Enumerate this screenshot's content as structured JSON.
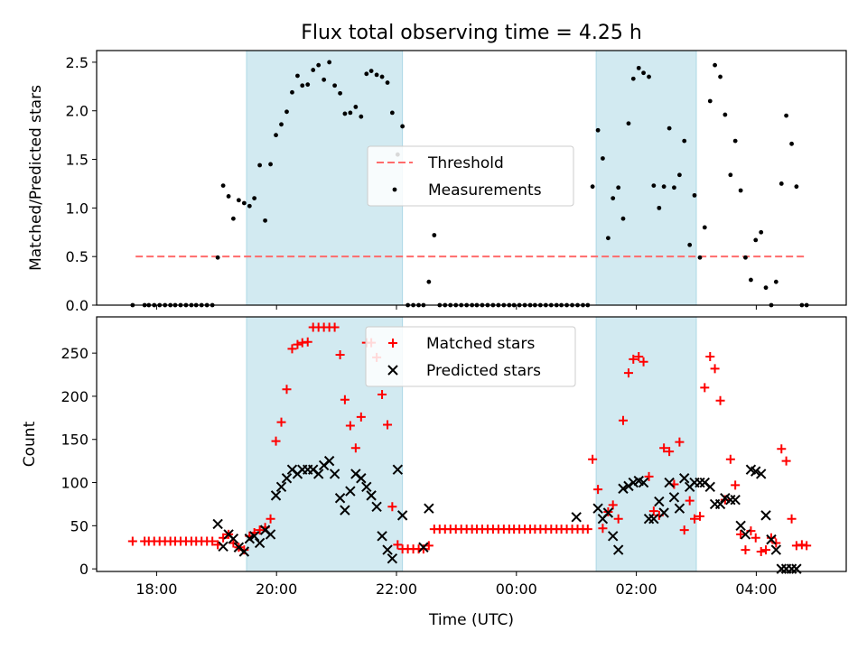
{
  "figure": {
    "title": "Flux total observing time = 4.25 h",
    "xlabel": "Time (UTC)"
  },
  "chart_data": [
    {
      "type": "scatter",
      "title": "Flux total observing time = 4.25 h",
      "ylabel": "Matched/Predicted stars",
      "xlabel": "",
      "x_unit": "hours relative to 00:00 UTC",
      "xlim": [
        -7.0,
        5.5
      ],
      "ylim": [
        0.0,
        2.62
      ],
      "yticks": [
        0.0,
        0.5,
        1.0,
        1.5,
        2.0,
        2.5
      ],
      "xtick_labels": [
        "18:00",
        "20:00",
        "22:00",
        "00:00",
        "02:00",
        "04:00"
      ],
      "xtick_values": [
        -6,
        -4,
        -2,
        0,
        2,
        4
      ],
      "shaded_intervals": [
        [
          -4.5,
          -1.9
        ],
        [
          1.33,
          3.0
        ]
      ],
      "shade_color": "#add8e6",
      "legend_location": "center",
      "series": [
        {
          "name": "Threshold",
          "style": "dashed-line",
          "color": "#ff6b6b",
          "x": [
            -6.35,
            4.85
          ],
          "y": [
            0.5,
            0.5
          ]
        },
        {
          "name": "Measurements",
          "style": "dot",
          "color": "#000000",
          "x": [
            -6.4,
            -6.2,
            -6.13,
            -6.04,
            -5.95,
            -5.86,
            -5.77,
            -5.69,
            -5.6,
            -5.51,
            -5.42,
            -5.34,
            -5.25,
            -5.16,
            -5.07,
            -4.98,
            -4.89,
            -4.8,
            -4.72,
            -4.63,
            -4.54,
            -4.45,
            -4.37,
            -4.28,
            -4.19,
            -4.1,
            -4.01,
            -3.92,
            -3.83,
            -3.74,
            -3.65,
            -3.57,
            -3.48,
            -3.39,
            -3.3,
            -3.21,
            -3.12,
            -3.03,
            -2.94,
            -2.86,
            -2.77,
            -2.68,
            -2.59,
            -2.5,
            -2.42,
            -2.33,
            -2.24,
            -2.15,
            -2.07,
            -1.98,
            -1.9,
            -1.81,
            -1.72,
            -1.63,
            -1.55,
            -1.46,
            -1.37,
            -1.28,
            -1.19,
            -1.1,
            -1.01,
            -0.92,
            -0.83,
            -0.74,
            -0.66,
            -0.57,
            -0.48,
            -0.39,
            -0.3,
            -0.21,
            -0.12,
            -0.04,
            0.05,
            0.14,
            0.23,
            0.31,
            0.4,
            0.49,
            0.58,
            0.67,
            0.75,
            0.84,
            0.93,
            1.02,
            1.11,
            1.19,
            1.27,
            1.36,
            1.44,
            1.53,
            1.61,
            1.7,
            1.78,
            1.87,
            1.95,
            2.04,
            2.12,
            2.21,
            2.29,
            2.38,
            2.46,
            2.55,
            2.63,
            2.72,
            2.8,
            2.89,
            2.97,
            3.06,
            3.14,
            3.23,
            3.31,
            3.4,
            3.48,
            3.57,
            3.65,
            3.74,
            3.82,
            3.91,
            3.99,
            4.08,
            4.16,
            4.25,
            4.33,
            4.42,
            4.5,
            4.59,
            4.67,
            4.76,
            4.84
          ],
          "y": [
            0.0,
            0.0,
            0.0,
            0.0,
            0.0,
            0.0,
            0.0,
            0.0,
            0.0,
            0.0,
            0.0,
            0.0,
            0.0,
            0.0,
            0.0,
            0.49,
            1.23,
            1.12,
            0.89,
            1.08,
            1.05,
            1.02,
            1.1,
            1.44,
            0.87,
            1.45,
            1.75,
            1.86,
            1.99,
            2.19,
            2.36,
            2.26,
            2.27,
            2.42,
            2.47,
            2.32,
            2.5,
            2.26,
            2.18,
            1.97,
            1.98,
            2.04,
            1.94,
            2.38,
            2.41,
            2.37,
            2.35,
            2.29,
            1.98,
            1.55,
            1.84,
            0.0,
            0.0,
            0.0,
            0.0,
            0.24,
            0.72,
            0.0,
            0.0,
            0.0,
            0.0,
            0.0,
            0.0,
            0.0,
            0.0,
            0.0,
            0.0,
            0.0,
            0.0,
            0.0,
            0.0,
            0.0,
            0.0,
            0.0,
            0.0,
            0.0,
            0.0,
            0.0,
            0.0,
            0.0,
            0.0,
            0.0,
            0.0,
            0.0,
            0.0,
            0.0,
            1.22,
            1.8,
            1.51,
            0.69,
            1.1,
            1.21,
            0.89,
            1.87,
            2.33,
            2.44,
            2.39,
            2.35,
            1.23,
            1.0,
            1.22,
            1.82,
            1.21,
            1.34,
            1.69,
            0.62,
            1.13,
            0.49,
            0.8,
            2.1,
            2.47,
            2.35,
            1.96,
            1.34,
            1.69,
            1.18,
            0.49,
            0.26,
            0.67,
            0.75,
            0.18,
            0.0,
            0.24,
            1.25,
            1.95,
            1.66,
            1.22,
            0.0,
            0.0
          ]
        }
      ]
    },
    {
      "type": "scatter",
      "title": "",
      "ylabel": "Count",
      "xlabel": "Time (UTC)",
      "x_unit": "hours relative to 00:00 UTC",
      "xlim": [
        -7.0,
        5.5
      ],
      "ylim": [
        -3,
        292
      ],
      "yticks": [
        0,
        50,
        100,
        150,
        200,
        250
      ],
      "xtick_labels": [
        "18:00",
        "20:00",
        "22:00",
        "00:00",
        "02:00",
        "04:00"
      ],
      "xtick_values": [
        -6,
        -4,
        -2,
        0,
        2,
        4
      ],
      "shaded_intervals": [
        [
          -4.5,
          -1.9
        ],
        [
          1.33,
          3.0
        ]
      ],
      "shade_color": "#add8e6",
      "legend_location": "upper center",
      "series": [
        {
          "name": "Matched stars",
          "style": "plus",
          "color": "#ff0000",
          "x": [
            -6.4,
            -6.2,
            -6.13,
            -6.04,
            -5.95,
            -5.86,
            -5.77,
            -5.69,
            -5.6,
            -5.51,
            -5.42,
            -5.34,
            -5.25,
            -5.16,
            -5.07,
            -4.98,
            -4.89,
            -4.8,
            -4.72,
            -4.63,
            -4.54,
            -4.45,
            -4.37,
            -4.28,
            -4.19,
            -4.1,
            -4.01,
            -3.92,
            -3.83,
            -3.74,
            -3.65,
            -3.57,
            -3.48,
            -3.39,
            -3.3,
            -3.21,
            -3.12,
            -3.03,
            -2.94,
            -2.86,
            -2.77,
            -2.68,
            -2.59,
            -2.5,
            -2.42,
            -2.33,
            -2.24,
            -2.15,
            -2.07,
            -1.98,
            -1.9,
            -1.81,
            -1.72,
            -1.63,
            -1.55,
            -1.46,
            -1.37,
            -1.28,
            -1.19,
            -1.1,
            -1.01,
            -0.92,
            -0.83,
            -0.74,
            -0.66,
            -0.57,
            -0.48,
            -0.39,
            -0.3,
            -0.21,
            -0.12,
            -0.04,
            0.05,
            0.14,
            0.23,
            0.31,
            0.4,
            0.49,
            0.58,
            0.67,
            0.75,
            0.84,
            0.93,
            1.02,
            1.11,
            1.19,
            1.27,
            1.36,
            1.44,
            1.53,
            1.61,
            1.7,
            1.78,
            1.87,
            1.95,
            2.04,
            2.12,
            2.21,
            2.29,
            2.38,
            2.46,
            2.55,
            2.63,
            2.72,
            2.8,
            2.89,
            2.97,
            3.06,
            3.14,
            3.23,
            3.31,
            3.4,
            3.48,
            3.57,
            3.65,
            3.74,
            3.82,
            3.91,
            3.99,
            4.08,
            4.16,
            4.25,
            4.33,
            4.42,
            4.5,
            4.59,
            4.67,
            4.76,
            4.84
          ],
          "y": [
            32,
            32,
            32,
            32,
            32,
            32,
            32,
            32,
            32,
            32,
            32,
            32,
            32,
            32,
            32,
            28,
            36,
            40,
            30,
            25,
            22,
            38,
            42,
            45,
            48,
            58,
            148,
            170,
            208,
            255,
            260,
            262,
            263,
            280,
            280,
            280,
            280,
            280,
            248,
            196,
            166,
            140,
            176,
            262,
            262,
            245,
            202,
            167,
            72,
            28,
            23,
            23,
            23,
            23,
            23,
            27,
            46,
            46,
            46,
            46,
            46,
            46,
            46,
            46,
            46,
            46,
            46,
            46,
            46,
            46,
            46,
            46,
            46,
            46,
            46,
            46,
            46,
            46,
            46,
            46,
            46,
            46,
            46,
            46,
            46,
            46,
            127,
            92,
            47,
            66,
            74,
            58,
            172,
            227,
            243,
            246,
            240,
            107,
            67,
            62,
            140,
            136,
            98,
            147,
            45,
            79,
            58,
            61,
            210,
            246,
            232,
            195,
            80,
            127,
            97,
            40,
            22,
            44,
            36,
            20,
            22,
            36,
            30,
            139,
            125,
            58,
            27,
            28,
            27
          ]
        },
        {
          "name": "Predicted stars",
          "style": "x",
          "color": "#000000",
          "x": [
            -4.98,
            -4.89,
            -4.8,
            -4.72,
            -4.63,
            -4.54,
            -4.45,
            -4.37,
            -4.28,
            -4.19,
            -4.1,
            -4.01,
            -3.92,
            -3.83,
            -3.74,
            -3.65,
            -3.57,
            -3.48,
            -3.39,
            -3.3,
            -3.21,
            -3.12,
            -3.03,
            -2.94,
            -2.86,
            -2.77,
            -2.68,
            -2.59,
            -2.5,
            -2.42,
            -2.33,
            -2.24,
            -2.15,
            -2.07,
            -1.98,
            -1.9,
            -1.55,
            -1.46,
            1.0,
            1.36,
            1.44,
            1.53,
            1.61,
            1.7,
            1.78,
            1.87,
            1.95,
            2.04,
            2.12,
            2.21,
            2.29,
            2.38,
            2.46,
            2.55,
            2.63,
            2.72,
            2.8,
            2.89,
            2.97,
            3.06,
            3.14,
            3.23,
            3.31,
            3.4,
            3.48,
            3.57,
            3.65,
            3.74,
            3.82,
            3.91,
            3.99,
            4.08,
            4.16,
            4.25,
            4.33,
            4.42,
            4.5,
            4.59,
            4.67
          ],
          "y": [
            52,
            26,
            40,
            35,
            25,
            20,
            35,
            38,
            30,
            45,
            40,
            85,
            95,
            105,
            115,
            110,
            115,
            115,
            115,
            110,
            120,
            125,
            110,
            82,
            68,
            90,
            110,
            105,
            95,
            85,
            72,
            38,
            22,
            12,
            115,
            62,
            25,
            70,
            60,
            70,
            58,
            65,
            38,
            22,
            93,
            96,
            100,
            102,
            100,
            58,
            58,
            78,
            65,
            100,
            83,
            70,
            105,
            95,
            100,
            100,
            100,
            95,
            75,
            75,
            82,
            80,
            80,
            50,
            40,
            115,
            113,
            110,
            62,
            34,
            22,
            0,
            0,
            0,
            0
          ]
        }
      ]
    }
  ]
}
